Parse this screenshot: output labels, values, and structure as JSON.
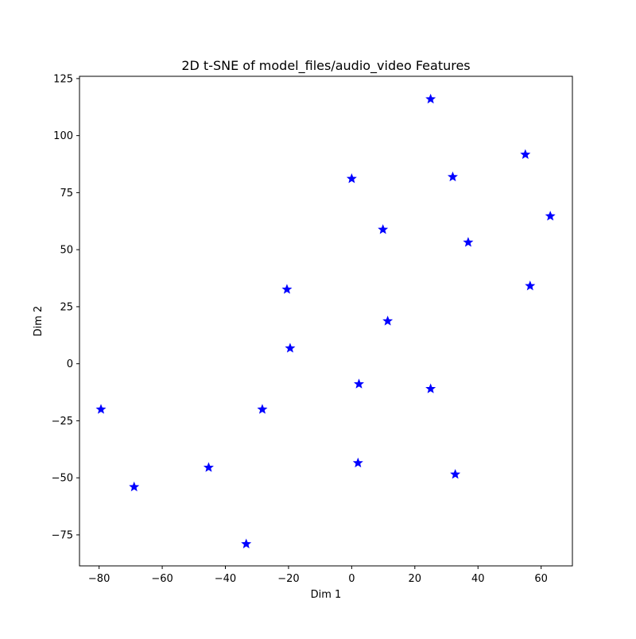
{
  "chart_data": {
    "type": "scatter",
    "title": "2D t-SNE of model_files/audio_video Features",
    "xlabel": "Dim 1",
    "ylabel": "Dim 2",
    "xlim": [
      -86.2,
      69.9
    ],
    "ylim": [
      -88.6,
      126.0
    ],
    "xticks": [
      -80,
      -60,
      -40,
      -20,
      0,
      20,
      40,
      60
    ],
    "yticks": [
      -75,
      -50,
      -25,
      0,
      25,
      50,
      75,
      100,
      125
    ],
    "xtick_labels": [
      "−80",
      "−60",
      "−40",
      "−20",
      "0",
      "20",
      "40",
      "60"
    ],
    "ytick_labels": [
      "−75",
      "−50",
      "−25",
      "0",
      "25",
      "50",
      "75",
      "100",
      "125"
    ],
    "grid": false,
    "marker": "star",
    "marker_color": "#0000ff",
    "series": [
      {
        "x": [
          25.0,
          55.0,
          32.0,
          0.0,
          62.9,
          9.9,
          36.9,
          -20.5,
          56.5,
          11.4,
          -19.5,
          2.3,
          25.0,
          -28.3,
          -79.4,
          2.0,
          32.8,
          -45.3,
          -68.9,
          -33.4
        ],
        "y": [
          116.0,
          91.7,
          81.9,
          81.1,
          64.7,
          58.8,
          53.2,
          32.6,
          34.1,
          18.7,
          6.8,
          -8.9,
          -11.0,
          -20.0,
          -20.0,
          -43.5,
          -48.5,
          -45.5,
          -54.0,
          -79.0
        ]
      }
    ]
  }
}
